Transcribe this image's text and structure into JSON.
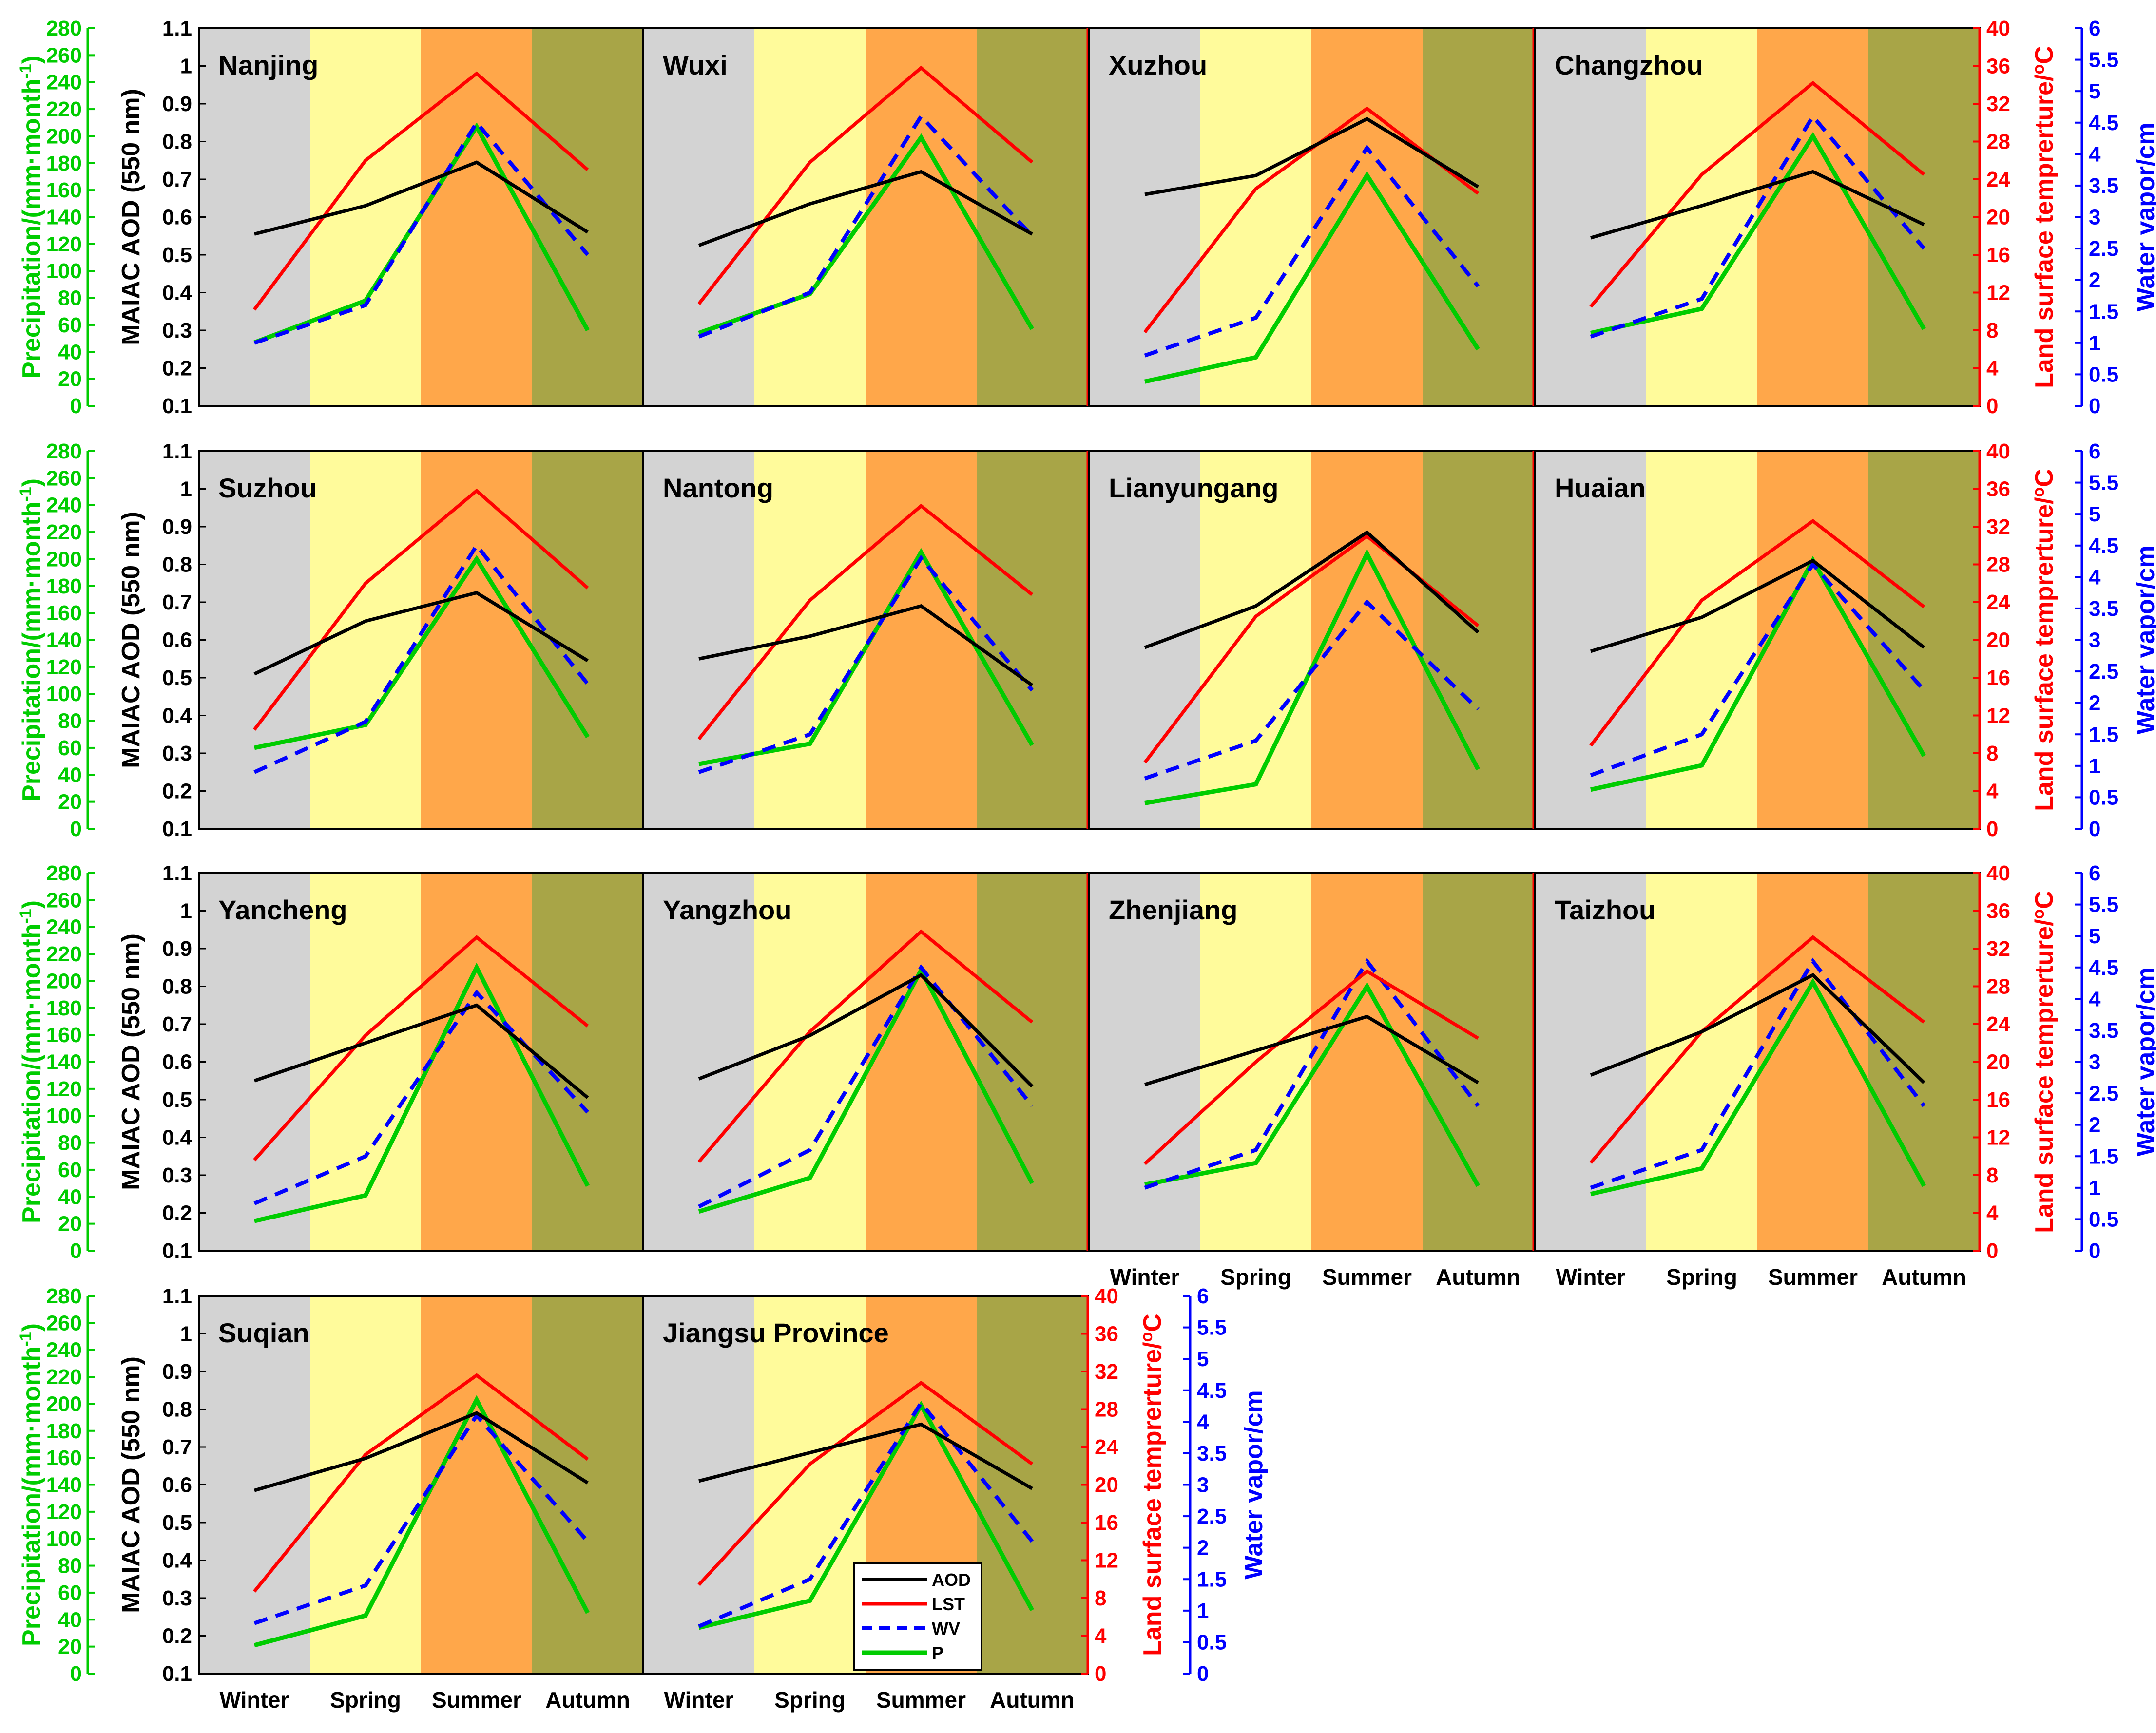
{
  "axis_labels": {
    "precipitation": "Precipitation/(mm·month",
    "precipitation_sup": "-1",
    "precipitation_close": ")",
    "aod": "MAIAC AOD (550 nm)",
    "lst": "Land surface temprerture/",
    "lst_sup": "o",
    "lst_unit": "C",
    "wv": "Water vapor/cm"
  },
  "colors": {
    "aod": "#000000",
    "lst": "#ff0000",
    "wv": "#0000ff",
    "p": "#00cc00",
    "winter_bg": "#d3d3d3",
    "spring_bg": "#fffb9b",
    "summer_bg": "#ffa74a",
    "autumn_bg": "#a8a547"
  },
  "chart_data": {
    "type": "line",
    "x": [
      "Winter",
      "Spring",
      "Summer",
      "Autumn"
    ],
    "axes": {
      "aod": {
        "label": "MAIAC AOD (550 nm)",
        "range": [
          0.1,
          1.1
        ],
        "ticks": [
          "0.1",
          "0.2",
          "0.3",
          "0.4",
          "0.5",
          "0.6",
          "0.7",
          "0.8",
          "0.9",
          "1",
          "1.1"
        ]
      },
      "precipitation": {
        "label": "Precipitation/(mm·month-1)",
        "range": [
          0,
          280
        ],
        "ticks": [
          "0",
          "20",
          "40",
          "60",
          "80",
          "100",
          "120",
          "140",
          "160",
          "180",
          "200",
          "220",
          "240",
          "260",
          "280"
        ]
      },
      "lst": {
        "label": "Land surface temprerture/oC",
        "range": [
          0,
          40
        ],
        "ticks": [
          "0",
          "4",
          "8",
          "12",
          "16",
          "20",
          "24",
          "28",
          "32",
          "36",
          "40"
        ]
      },
      "wv": {
        "label": "Water vapor/cm",
        "range": [
          0,
          6
        ],
        "ticks": [
          "0",
          "0.5",
          "1",
          "1.5",
          "2",
          "2.5",
          "3",
          "3.5",
          "4",
          "4.5",
          "5",
          "5.5",
          "6"
        ]
      }
    },
    "legend": {
      "placement": "bottom-right of Jiangsu Province panel",
      "entries": [
        "AOD",
        "LST",
        "WV",
        "P"
      ]
    },
    "panels": [
      {
        "name": "Nanjing",
        "aod": [
          0.555,
          0.63,
          0.745,
          0.56
        ],
        "lst": [
          10.2,
          26,
          35.2,
          25
        ],
        "wv": [
          1,
          1.6,
          4.5,
          2.4
        ],
        "p": [
          47,
          78,
          207,
          56
        ]
      },
      {
        "name": "Wuxi",
        "aod": [
          0.525,
          0.635,
          0.72,
          0.555
        ],
        "lst": [
          10.8,
          25.8,
          35.8,
          25.8
        ],
        "wv": [
          1.1,
          1.8,
          4.6,
          2.7
        ],
        "p": [
          54,
          83,
          199,
          57
        ]
      },
      {
        "name": "Xuzhou",
        "aod": [
          0.66,
          0.71,
          0.86,
          0.68
        ],
        "lst": [
          7.8,
          23,
          31.5,
          22.5
        ],
        "wv": [
          0.8,
          1.4,
          4.1,
          1.9
        ],
        "p": [
          18,
          36,
          171,
          42
        ]
      },
      {
        "name": "Changzhou",
        "aod": [
          0.545,
          0.63,
          0.72,
          0.58
        ],
        "lst": [
          10.5,
          24.5,
          34.2,
          24.5
        ],
        "wv": [
          1.1,
          1.7,
          4.6,
          2.5
        ],
        "p": [
          54,
          72,
          200,
          57
        ]
      },
      {
        "name": "Suzhou",
        "aod": [
          0.51,
          0.65,
          0.725,
          0.545
        ],
        "lst": [
          10.5,
          26,
          35.8,
          25.5
        ],
        "wv": [
          0.9,
          1.7,
          4.5,
          2.3
        ],
        "p": [
          60,
          77,
          200,
          68
        ]
      },
      {
        "name": "Nantong",
        "aod": [
          0.55,
          0.61,
          0.69,
          0.48
        ],
        "lst": [
          9.5,
          24.2,
          34.2,
          24.8
        ],
        "wv": [
          0.9,
          1.5,
          4.3,
          2.2
        ],
        "p": [
          48,
          63,
          205,
          62
        ]
      },
      {
        "name": "Lianyungang",
        "aod": [
          0.58,
          0.69,
          0.885,
          0.62
        ],
        "lst": [
          7,
          22.5,
          31,
          21.5
        ],
        "wv": [
          0.8,
          1.4,
          3.6,
          1.9
        ],
        "p": [
          19,
          33,
          204,
          44
        ]
      },
      {
        "name": "Huaian",
        "aod": [
          0.57,
          0.66,
          0.81,
          0.58
        ],
        "lst": [
          8.8,
          24.2,
          32.6,
          23.5
        ],
        "wv": [
          0.85,
          1.5,
          4.2,
          2.2
        ],
        "p": [
          29,
          47,
          199,
          54
        ]
      },
      {
        "name": "Yancheng",
        "aod": [
          0.55,
          0.65,
          0.75,
          0.505
        ],
        "lst": [
          9.6,
          22.8,
          33.2,
          23.8
        ],
        "wv": [
          0.75,
          1.5,
          4.1,
          2.2
        ],
        "p": [
          22,
          41,
          210,
          48
        ]
      },
      {
        "name": "Yangzhou",
        "aod": [
          0.555,
          0.67,
          0.83,
          0.535
        ],
        "lst": [
          9.4,
          23.2,
          33.8,
          24.2
        ],
        "wv": [
          0.7,
          1.6,
          4.5,
          2.3
        ],
        "p": [
          29,
          54,
          208,
          50
        ]
      },
      {
        "name": "Zhenjiang",
        "aod": [
          0.54,
          0.63,
          0.72,
          0.545
        ],
        "lst": [
          9.2,
          20,
          29.6,
          22.5
        ],
        "wv": [
          1,
          1.6,
          4.6,
          2.3
        ],
        "p": [
          49,
          65,
          196,
          48
        ]
      },
      {
        "name": "Taizhou",
        "aod": [
          0.565,
          0.68,
          0.83,
          0.545
        ],
        "lst": [
          9.3,
          23.2,
          33.2,
          24.2
        ],
        "wv": [
          1,
          1.6,
          4.6,
          2.3
        ],
        "p": [
          42,
          61,
          199,
          48
        ]
      },
      {
        "name": "Suqian",
        "aod": [
          0.585,
          0.67,
          0.79,
          0.605
        ],
        "lst": [
          8.7,
          23.2,
          31.6,
          22.7
        ],
        "wv": [
          0.8,
          1.4,
          4.1,
          2.1
        ],
        "p": [
          21,
          43,
          203,
          45
        ]
      },
      {
        "name": "Jiangsu Province",
        "aod": [
          0.61,
          0.685,
          0.76,
          0.59
        ],
        "lst": [
          9.4,
          22.2,
          30.8,
          22.2
        ],
        "wv": [
          0.75,
          1.5,
          4.3,
          2.1
        ],
        "p": [
          34,
          54,
          199,
          47
        ]
      }
    ]
  }
}
